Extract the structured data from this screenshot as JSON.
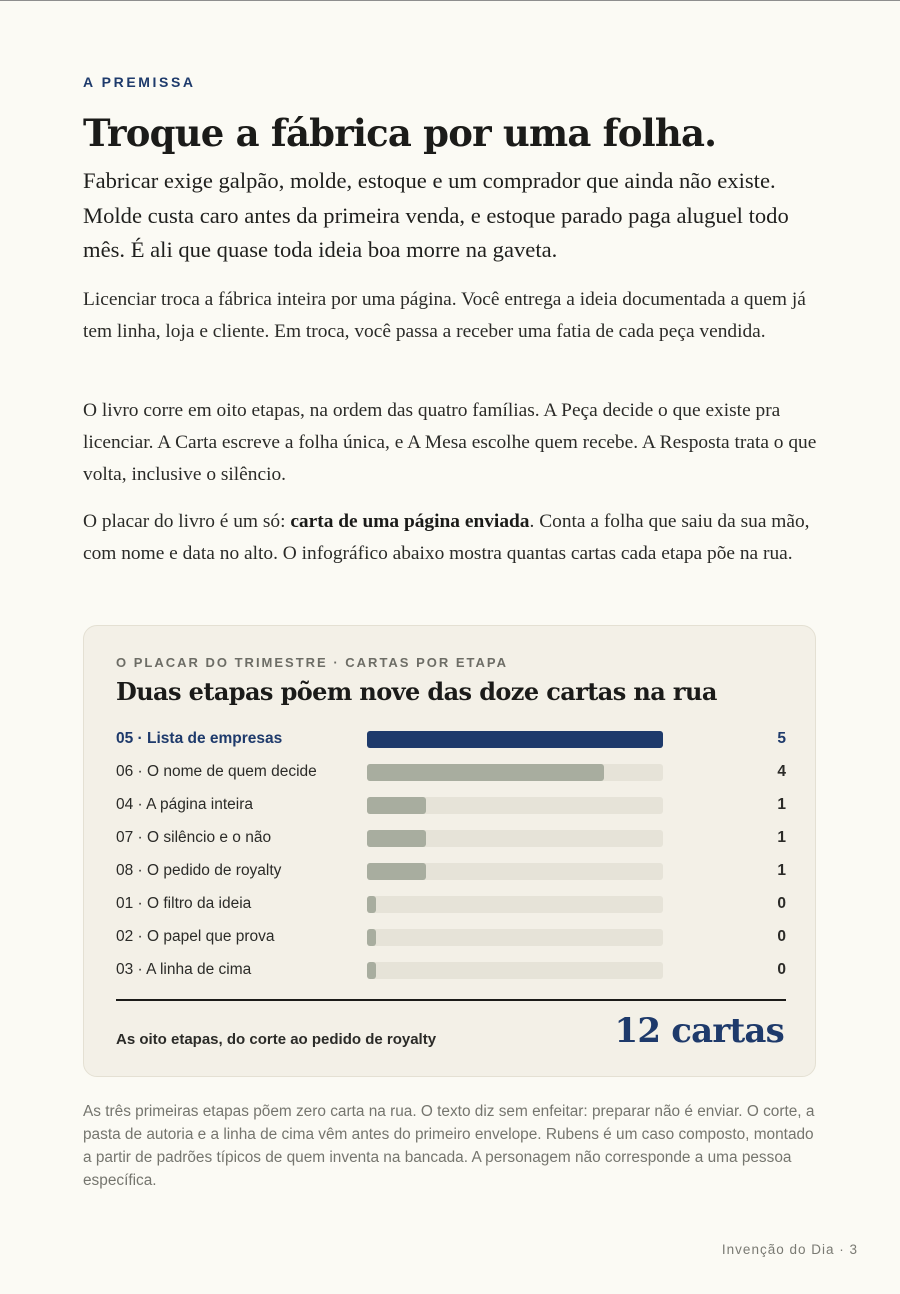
{
  "section": {
    "eyebrow": "A PREMISSA",
    "title": "Troque a fábrica por uma folha.",
    "lead": "Fabricar exige galpão, molde, estoque e um comprador que ainda não existe. Molde custa caro antes da primeira venda, e estoque parado paga aluguel todo mês. É ali que quase toda ideia boa morre na gaveta.",
    "p1": "Licenciar troca a fábrica inteira por uma página. Você entrega a ideia documentada a quem já tem linha, loja e cliente. Em troca, você passa a receber uma fatia de cada peça vendida.",
    "p2": "O livro corre em oito etapas, na ordem das quatro famílias. A Peça decide o que existe pra licenciar. A Carta escreve a folha única, e A Mesa escolhe quem recebe. A Resposta trata o que volta, inclusive o silêncio.",
    "p3_before": "O placar do livro é um só: ",
    "p3_bold": "carta de uma página enviada",
    "p3_after": ". Conta a folha que saiu da sua mão, com nome e data no alto. O infográfico abaixo mostra quantas cartas cada etapa põe na rua."
  },
  "chart_data": {
    "type": "bar",
    "orientation": "horizontal",
    "eyebrow": "O PLACAR DO TRIMESTRE · CARTAS POR ETAPA",
    "title": "Duas etapas põem nove das doze cartas na rua",
    "categories": [
      "05 · Lista de empresas",
      "06 · O nome de quem decide",
      "04 · A página inteira",
      "07 · O silêncio e o não",
      "08 · O pedido de royalty",
      "01 · O filtro da ideia",
      "02 · O papel que prova",
      "03 · A linha de cima"
    ],
    "values": [
      5,
      4,
      1,
      1,
      1,
      0,
      0,
      0
    ],
    "highlight_index": 0,
    "xlim": [
      0,
      5
    ],
    "grid": false,
    "colors": {
      "highlight": "#1e3a6b",
      "bar": "#a8ad9f",
      "track": "#e6e3d8"
    },
    "total_label": "As oito etapas, do corte ao pedido de royalty",
    "total_value": "12 cartas"
  },
  "note": "As três primeiras etapas põem zero carta na rua. O texto diz sem enfeitar: preparar não é enviar. O corte, a pasta de autoria e a linha de cima vêm antes do primeiro envelope. Rubens é um caso composto, montado a partir de padrões típicos de quem inventa na bancada. A personagem não corresponde a uma pessoa específica.",
  "footer": "Invenção do Dia · 3"
}
